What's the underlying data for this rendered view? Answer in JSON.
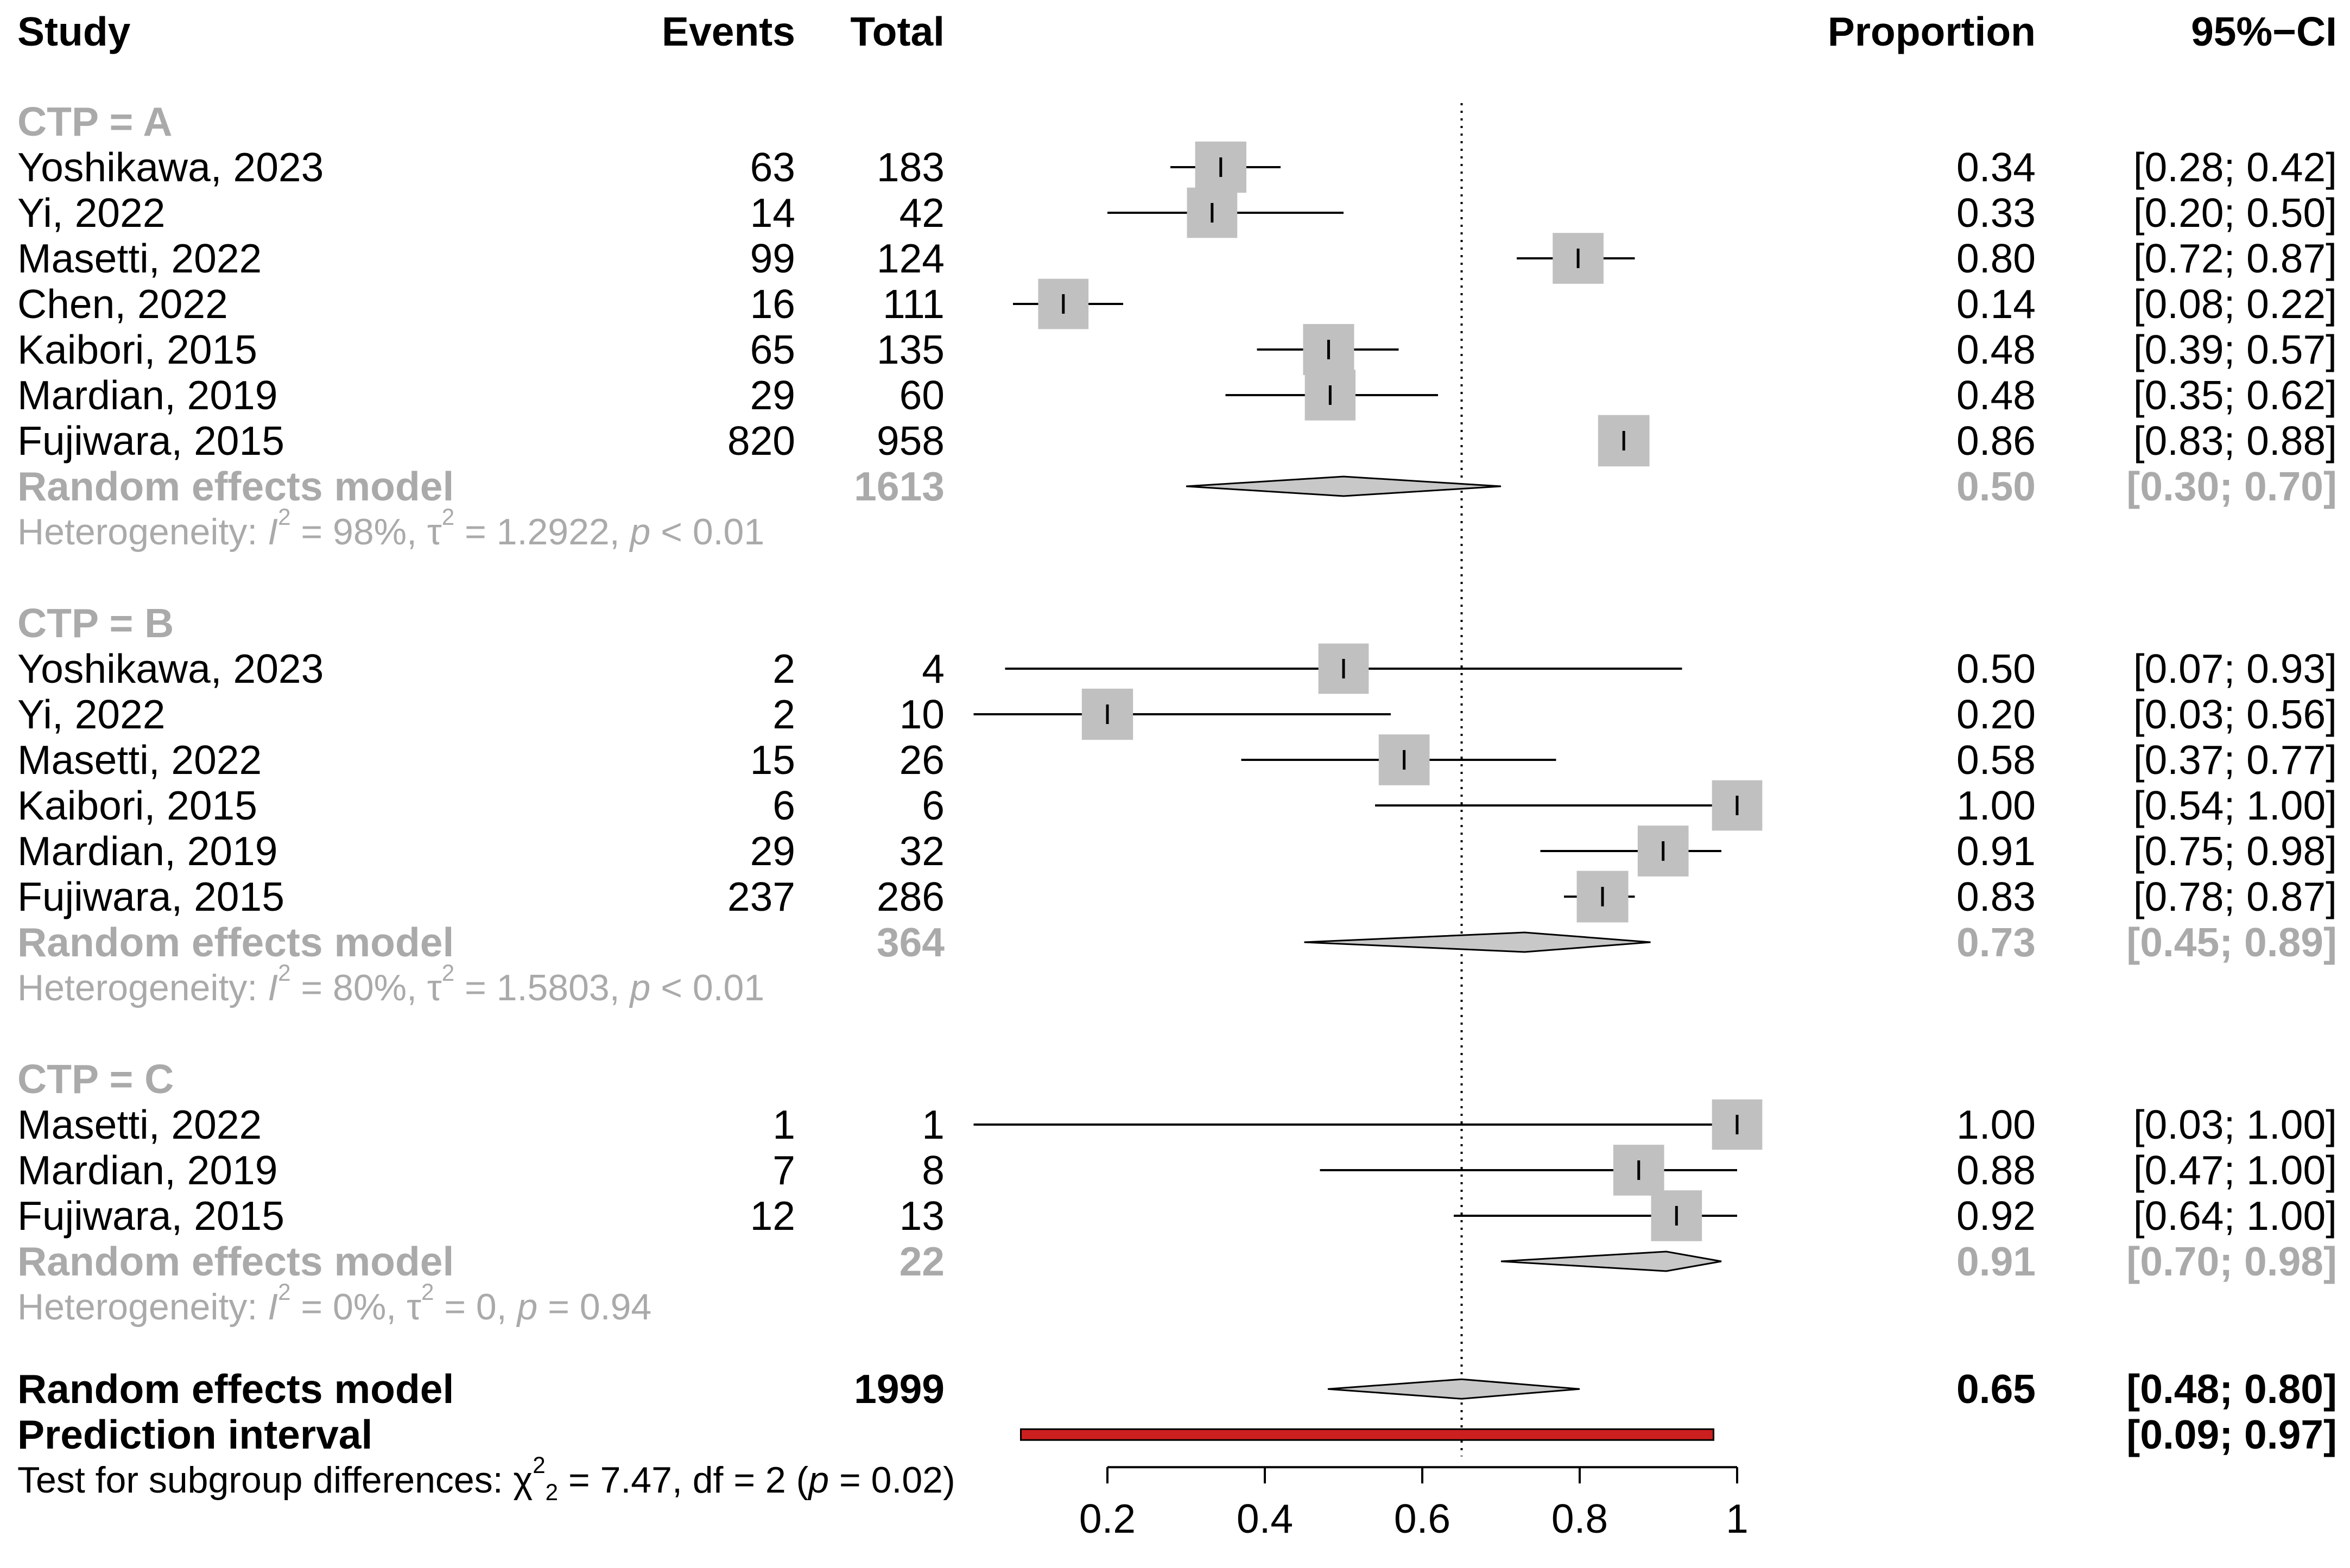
{
  "chart_data": {
    "type": "forest",
    "headers": {
      "study": "Study",
      "events": "Events",
      "total": "Total",
      "proportion": "Proportion",
      "ci": "95%−CI"
    },
    "subgroups": [
      {
        "label": "CTP = A",
        "studies": [
          {
            "name": "Yoshikawa, 2023",
            "events": "63",
            "total": "183",
            "proportion_text": "0.34",
            "ci_text": "[0.28; 0.42]",
            "est": 0.344,
            "lower": 0.28,
            "upper": 0.42,
            "weight": 0.145
          },
          {
            "name": "Yi, 2022",
            "events": "14",
            "total": "42",
            "proportion_text": "0.33",
            "ci_text": "[0.20; 0.50]",
            "est": 0.333,
            "lower": 0.2,
            "upper": 0.5,
            "weight": 0.14
          },
          {
            "name": "Masetti, 2022",
            "events": "99",
            "total": "124",
            "proportion_text": "0.80",
            "ci_text": "[0.72; 0.87]",
            "est": 0.798,
            "lower": 0.72,
            "upper": 0.87,
            "weight": 0.143
          },
          {
            "name": "Chen, 2022",
            "events": "16",
            "total": "111",
            "proportion_text": "0.14",
            "ci_text": "[0.08; 0.22]",
            "est": 0.144,
            "lower": 0.08,
            "upper": 0.22,
            "weight": 0.14
          },
          {
            "name": "Kaibori, 2015",
            "events": "65",
            "total": "135",
            "proportion_text": "0.48",
            "ci_text": "[0.39; 0.57]",
            "est": 0.481,
            "lower": 0.39,
            "upper": 0.57,
            "weight": 0.144
          },
          {
            "name": "Mardian, 2019",
            "events": "29",
            "total": "60",
            "proportion_text": "0.48",
            "ci_text": "[0.35; 0.62]",
            "est": 0.483,
            "lower": 0.35,
            "upper": 0.62,
            "weight": 0.142
          },
          {
            "name": "Fujiwara, 2015",
            "events": "820",
            "total": "958",
            "proportion_text": "0.86",
            "ci_text": "[0.83; 0.88]",
            "est": 0.856,
            "lower": 0.83,
            "upper": 0.88,
            "weight": 0.146
          }
        ],
        "pooled": {
          "label": "Random effects model",
          "total": "1613",
          "proportion_text": "0.50",
          "ci_text": "[0.30; 0.70]",
          "est": 0.5,
          "lower": 0.3,
          "upper": 0.7
        },
        "heterogeneity": {
          "prefix": "Heterogeneity: ",
          "i2_symbol": "I",
          "i2_value": " = 98%, ",
          "tau_symbol": "τ",
          "tau_value": " = 1.2922, ",
          "p_symbol": "p",
          "p_value": " < 0.01"
        }
      },
      {
        "label": "CTP = B",
        "studies": [
          {
            "name": "Yoshikawa, 2023",
            "events": "2",
            "total": "4",
            "proportion_text": "0.50",
            "ci_text": "[0.07; 0.93]",
            "est": 0.5,
            "lower": 0.07,
            "upper": 0.93,
            "weight": 0.14
          },
          {
            "name": "Yi, 2022",
            "events": "2",
            "total": "10",
            "proportion_text": "0.20",
            "ci_text": "[0.03; 0.56]",
            "est": 0.2,
            "lower": 0.03,
            "upper": 0.56,
            "weight": 0.145
          },
          {
            "name": "Masetti, 2022",
            "events": "15",
            "total": "26",
            "proportion_text": "0.58",
            "ci_text": "[0.37; 0.77]",
            "est": 0.577,
            "lower": 0.37,
            "upper": 0.77,
            "weight": 0.143
          },
          {
            "name": "Kaibori, 2015",
            "events": "6",
            "total": "6",
            "proportion_text": "1.00",
            "ci_text": "[0.54; 1.00]",
            "est": 1.0,
            "lower": 0.54,
            "upper": 1.0,
            "weight": 0.14
          },
          {
            "name": "Mardian, 2019",
            "events": "29",
            "total": "32",
            "proportion_text": "0.91",
            "ci_text": "[0.75; 0.98]",
            "est": 0.906,
            "lower": 0.75,
            "upper": 0.98,
            "weight": 0.143
          },
          {
            "name": "Fujiwara, 2015",
            "events": "237",
            "total": "286",
            "proportion_text": "0.83",
            "ci_text": "[0.78; 0.87]",
            "est": 0.829,
            "lower": 0.78,
            "upper": 0.87,
            "weight": 0.147
          }
        ],
        "pooled": {
          "label": "Random effects model",
          "total": "364",
          "proportion_text": "0.73",
          "ci_text": "[0.45; 0.89]",
          "est": 0.73,
          "lower": 0.45,
          "upper": 0.89
        },
        "heterogeneity": {
          "prefix": "Heterogeneity: ",
          "i2_symbol": "I",
          "i2_value": " = 80%, ",
          "tau_symbol": "τ",
          "tau_value": " = 1.5803, ",
          "p_symbol": "p",
          "p_value": " < 0.01"
        }
      },
      {
        "label": "CTP = C",
        "studies": [
          {
            "name": "Masetti, 2022",
            "events": "1",
            "total": "1",
            "proportion_text": "1.00",
            "ci_text": "[0.03; 1.00]",
            "est": 1.0,
            "lower": 0.03,
            "upper": 1.0,
            "weight": 0.14
          },
          {
            "name": "Mardian, 2019",
            "events": "7",
            "total": "8",
            "proportion_text": "0.88",
            "ci_text": "[0.47; 1.00]",
            "est": 0.875,
            "lower": 0.47,
            "upper": 1.0,
            "weight": 0.143
          },
          {
            "name": "Fujiwara, 2015",
            "events": "12",
            "total": "13",
            "proportion_text": "0.92",
            "ci_text": "[0.64; 1.00]",
            "est": 0.923,
            "lower": 0.64,
            "upper": 1.0,
            "weight": 0.143
          }
        ],
        "pooled": {
          "label": "Random effects model",
          "total": "22",
          "proportion_text": "0.91",
          "ci_text": "[0.70; 0.98]",
          "est": 0.91,
          "lower": 0.7,
          "upper": 0.98
        },
        "heterogeneity": {
          "prefix": "Heterogeneity: ",
          "i2_symbol": "I",
          "i2_value": " = 0%, ",
          "tau_symbol": "τ",
          "tau_value": " = 0, ",
          "p_symbol": "p",
          "p_value": " = 0.94"
        }
      }
    ],
    "overall": {
      "label": "Random effects model",
      "total": "1999",
      "proportion_text": "0.65",
      "ci_text": "[0.48; 0.80]",
      "est": 0.65,
      "lower": 0.48,
      "upper": 0.8
    },
    "prediction": {
      "label": "Prediction interval",
      "ci_text": "[0.09; 0.97]",
      "lower": 0.09,
      "upper": 0.97
    },
    "subgroup_test": {
      "prefix": "Test for subgroup differences: ",
      "chi_symbol": "χ",
      "chi_value": " = 7.47, df = 2 (",
      "p_symbol": "p",
      "p_value": " = 0.02)",
      "chi_sub": "2",
      "chi_sup": "2"
    },
    "x_axis": {
      "ticks": [
        0.2,
        0.4,
        0.6,
        0.8,
        1
      ],
      "tick_labels": [
        "0.2",
        "0.4",
        "0.6",
        "0.8",
        "1"
      ],
      "range": [
        0.2,
        1.0
      ],
      "reference_line": 0.65
    },
    "colors": {
      "square": "#c0c0c0",
      "diamond": "#c8c8c8",
      "grey_text": "#aaaaaa",
      "prediction_bar": "#cc1f1f",
      "ink": "#000000"
    }
  }
}
